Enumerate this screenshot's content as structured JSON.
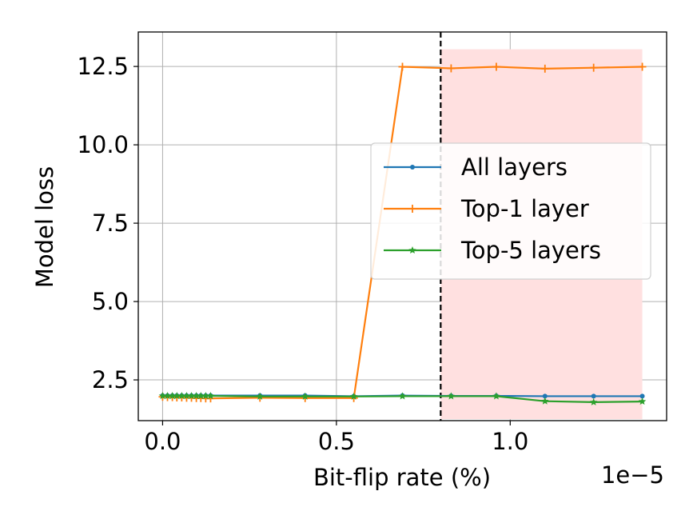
{
  "chart_data": {
    "type": "line",
    "xlabel": "Bit-flip rate (%)",
    "ylabel": "Model loss",
    "x_offset_label": "1e−5",
    "xlim": [
      -0.07,
      1.45
    ],
    "ylim": [
      1.2,
      13.6
    ],
    "xticks": [
      0.0,
      0.5,
      1.0
    ],
    "xtick_labels": [
      "0.0",
      "0.5",
      "1.0"
    ],
    "yticks": [
      2.5,
      5.0,
      7.5,
      10.0,
      12.5
    ],
    "ytick_labels": [
      "2.5",
      "5.0",
      "7.5",
      "10.0",
      "12.5"
    ],
    "grid": true,
    "legend_position": "center-right",
    "threshold_line_x": 0.8,
    "shaded_region": {
      "x": [
        0.8,
        1.38
      ],
      "y": [
        1.25,
        13.05
      ],
      "color": "#ffe0e0"
    },
    "series": [
      {
        "name": "All layers",
        "color": "#1f77b4",
        "marker": "dot",
        "x": [
          0.0,
          0.014,
          0.028,
          0.041,
          0.055,
          0.069,
          0.083,
          0.097,
          0.11,
          0.124,
          0.138,
          0.28,
          0.41,
          0.55,
          0.69,
          0.83,
          0.96,
          1.1,
          1.24,
          1.38
        ],
        "y": [
          2.0,
          2.0,
          2.0,
          2.0,
          2.0,
          2.0,
          2.0,
          2.0,
          2.0,
          2.0,
          2.0,
          2.0,
          2.0,
          1.98,
          2.0,
          1.99,
          1.99,
          1.98,
          1.98,
          1.98
        ]
      },
      {
        "name": "Top-1 layer",
        "color": "#ff7f0e",
        "marker": "plus",
        "x": [
          0.0,
          0.014,
          0.028,
          0.041,
          0.055,
          0.069,
          0.083,
          0.097,
          0.11,
          0.124,
          0.138,
          0.28,
          0.41,
          0.55,
          0.69,
          0.83,
          0.96,
          1.1,
          1.24,
          1.38
        ],
        "y": [
          1.96,
          1.95,
          1.95,
          1.94,
          1.94,
          1.93,
          1.93,
          1.92,
          1.92,
          1.91,
          1.91,
          1.93,
          1.92,
          1.92,
          12.49,
          12.44,
          12.49,
          12.43,
          12.46,
          12.49
        ]
      },
      {
        "name": "Top-5 layers",
        "color": "#2ca02c",
        "marker": "star",
        "x": [
          0.0,
          0.014,
          0.028,
          0.041,
          0.055,
          0.069,
          0.083,
          0.097,
          0.11,
          0.124,
          0.138,
          0.28,
          0.41,
          0.55,
          0.69,
          0.83,
          0.96,
          1.1,
          1.24,
          1.38
        ],
        "y": [
          1.99,
          1.99,
          1.99,
          1.99,
          1.99,
          1.99,
          1.99,
          1.99,
          1.99,
          1.99,
          1.99,
          1.97,
          1.97,
          1.97,
          1.98,
          1.98,
          1.98,
          1.82,
          1.79,
          1.81
        ]
      }
    ]
  }
}
